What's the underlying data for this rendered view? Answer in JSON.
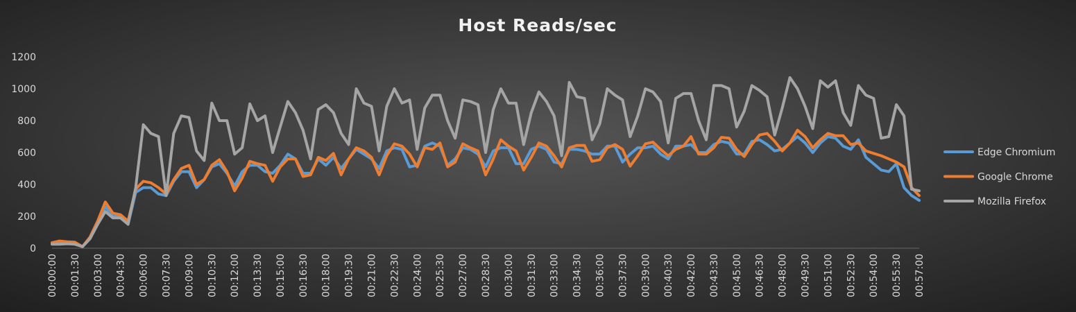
{
  "chart_data": {
    "type": "line",
    "title": "Host Reads/sec",
    "categories": [
      "00:00:00",
      null,
      null,
      "00:01:30",
      null,
      null,
      "00:03:00",
      null,
      null,
      "00:04:30",
      null,
      null,
      "00:06:00",
      null,
      null,
      "00:07:30",
      null,
      null,
      "00:09:00",
      null,
      null,
      "00:10:30",
      null,
      null,
      "00:12:00",
      null,
      null,
      "00:13:30",
      null,
      null,
      "00:15:00",
      null,
      null,
      "00:16:30",
      null,
      null,
      "00:18:00",
      null,
      null,
      "00:19:30",
      null,
      null,
      "00:21:00",
      null,
      null,
      "00:22:30",
      null,
      null,
      "00:24:00",
      null,
      null,
      "00:25:30",
      null,
      null,
      "00:27:00",
      null,
      null,
      "00:28:30",
      null,
      null,
      "00:30:00",
      null,
      null,
      "00:31:30",
      null,
      null,
      "00:33:00",
      null,
      null,
      "00:34:30",
      null,
      null,
      "00:36:00",
      null,
      null,
      "00:37:30",
      null,
      null,
      "00:39:00",
      null,
      null,
      "00:40:30",
      null,
      null,
      "00:42:00",
      null,
      null,
      "00:43:30",
      null,
      null,
      "00:45:00",
      null,
      null,
      "00:46:30",
      null,
      null,
      "00:48:00",
      null,
      null,
      "00:49:30",
      null,
      null,
      "00:51:00",
      null,
      null,
      "00:52:30",
      null,
      null,
      "00:54:00",
      null,
      null,
      "00:55:30",
      null,
      null,
      "00:57:00"
    ],
    "series": [
      {
        "name": "Edge Chromium",
        "color": "#5b9bd5",
        "values": [
          30,
          30,
          35,
          30,
          10,
          60,
          160,
          260,
          200,
          200,
          150,
          350,
          380,
          380,
          340,
          330,
          420,
          480,
          480,
          380,
          430,
          510,
          530,
          470,
          390,
          480,
          520,
          520,
          480,
          470,
          520,
          590,
          560,
          470,
          470,
          560,
          520,
          570,
          500,
          560,
          620,
          590,
          560,
          500,
          610,
          630,
          620,
          510,
          520,
          640,
          660,
          640,
          520,
          560,
          630,
          620,
          590,
          510,
          610,
          630,
          630,
          530,
          530,
          620,
          640,
          620,
          540,
          530,
          620,
          620,
          610,
          590,
          590,
          640,
          640,
          540,
          590,
          630,
          630,
          640,
          590,
          560,
          640,
          640,
          650,
          600,
          600,
          650,
          670,
          660,
          590,
          590,
          670,
          680,
          650,
          610,
          620,
          660,
          700,
          660,
          600,
          660,
          700,
          690,
          640,
          620,
          680,
          570,
          530,
          490,
          480,
          530,
          380,
          330,
          300
        ]
      },
      {
        "name": "Google Chrome",
        "color": "#ed7d31",
        "values": [
          35,
          45,
          40,
          38,
          10,
          70,
          170,
          290,
          220,
          210,
          170,
          370,
          420,
          410,
          380,
          340,
          430,
          500,
          520,
          400,
          430,
          520,
          555,
          480,
          360,
          440,
          545,
          530,
          520,
          420,
          510,
          560,
          560,
          450,
          460,
          570,
          550,
          595,
          460,
          560,
          630,
          610,
          570,
          460,
          580,
          655,
          640,
          590,
          510,
          630,
          620,
          660,
          510,
          540,
          655,
          630,
          610,
          460,
          560,
          680,
          640,
          610,
          490,
          570,
          660,
          640,
          580,
          510,
          630,
          645,
          645,
          545,
          555,
          630,
          650,
          620,
          515,
          580,
          655,
          665,
          620,
          580,
          620,
          640,
          700,
          590,
          590,
          630,
          695,
          690,
          620,
          575,
          650,
          710,
          720,
          670,
          610,
          660,
          740,
          700,
          630,
          680,
          720,
          705,
          705,
          650,
          660,
          610,
          595,
          580,
          560,
          540,
          510,
          380,
          330
        ]
      },
      {
        "name": "Mozilla Firefox",
        "color": "#a5a5a5",
        "values": [
          25,
          25,
          28,
          25,
          10,
          60,
          150,
          230,
          190,
          190,
          150,
          380,
          775,
          720,
          700,
          330,
          720,
          830,
          820,
          610,
          550,
          910,
          800,
          800,
          590,
          630,
          905,
          800,
          830,
          600,
          760,
          920,
          850,
          740,
          560,
          870,
          900,
          850,
          720,
          650,
          1000,
          910,
          890,
          610,
          890,
          1000,
          910,
          930,
          620,
          880,
          960,
          960,
          800,
          690,
          930,
          920,
          900,
          600,
          870,
          1000,
          910,
          910,
          650,
          850,
          980,
          920,
          830,
          580,
          1040,
          950,
          940,
          680,
          780,
          1000,
          960,
          930,
          700,
          830,
          1000,
          980,
          920,
          660,
          940,
          970,
          970,
          800,
          680,
          1020,
          1020,
          1000,
          760,
          860,
          1020,
          990,
          950,
          710,
          880,
          1070,
          1000,
          890,
          750,
          1050,
          1010,
          1050,
          850,
          770,
          1020,
          960,
          940,
          690,
          700,
          900,
          830,
          370,
          360
        ]
      }
    ],
    "ylim": [
      0,
      1200
    ],
    "yticks": [
      0,
      200,
      400,
      600,
      800,
      1000,
      1200
    ],
    "grid": false,
    "legend": "right"
  }
}
